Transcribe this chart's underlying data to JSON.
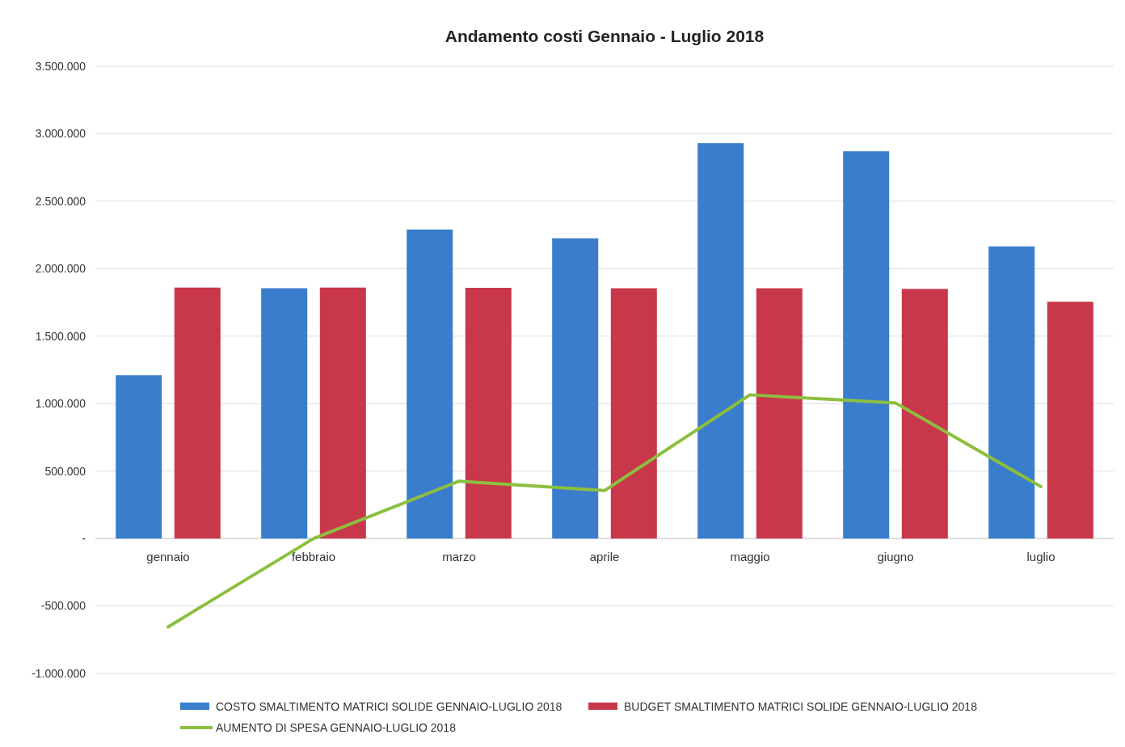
{
  "chart_data": {
    "type": "bar",
    "title": "Andamento costi Gennaio - Luglio 2018",
    "categories": [
      "gennaio",
      "febbraio",
      "marzo",
      "aprile",
      "maggio",
      "giugno",
      "luglio"
    ],
    "series": [
      {
        "name": "COSTO SMALTIMENTO MATRICI SOLIDE GENNAIO-LUGLIO 2018",
        "color": "#3a7dcc",
        "values": [
          1210000,
          1855000,
          2290000,
          2225000,
          2930000,
          2870000,
          2165000
        ]
      },
      {
        "name": "BUDGET SMALTIMENTO MATRICI SOLIDE GENNAIO-LUGLIO 2018",
        "color": "#c8374a",
        "values": [
          1860000,
          1860000,
          1858000,
          1855000,
          1855000,
          1850000,
          1755000
        ]
      },
      {
        "name": "AUMENTO DI SPESA GENNAIO-LUGLIO 2018",
        "color": "#8cbf3f",
        "type": "line",
        "values": [
          -655000,
          0,
          425000,
          355000,
          1065000,
          1005000,
          385000
        ]
      }
    ],
    "ylim": [
      -1000000,
      3500000
    ],
    "yticks": [
      {
        "value": -1000000,
        "label": "-1.000.000"
      },
      {
        "value": -500000,
        "label": "-500.000"
      },
      {
        "value": 0,
        "label": "-"
      },
      {
        "value": 500000,
        "label": "500.000"
      },
      {
        "value": 1000000,
        "label": "1.000.000"
      },
      {
        "value": 1500000,
        "label": "1.500.000"
      },
      {
        "value": 2000000,
        "label": "2.000.000"
      },
      {
        "value": 2500000,
        "label": "2.500.000"
      },
      {
        "value": 3000000,
        "label": "3.000.000"
      },
      {
        "value": 3500000,
        "label": "3.500.000"
      }
    ],
    "grid": "y",
    "legend": "bottom",
    "marker": "none",
    "line_style": "solid"
  }
}
